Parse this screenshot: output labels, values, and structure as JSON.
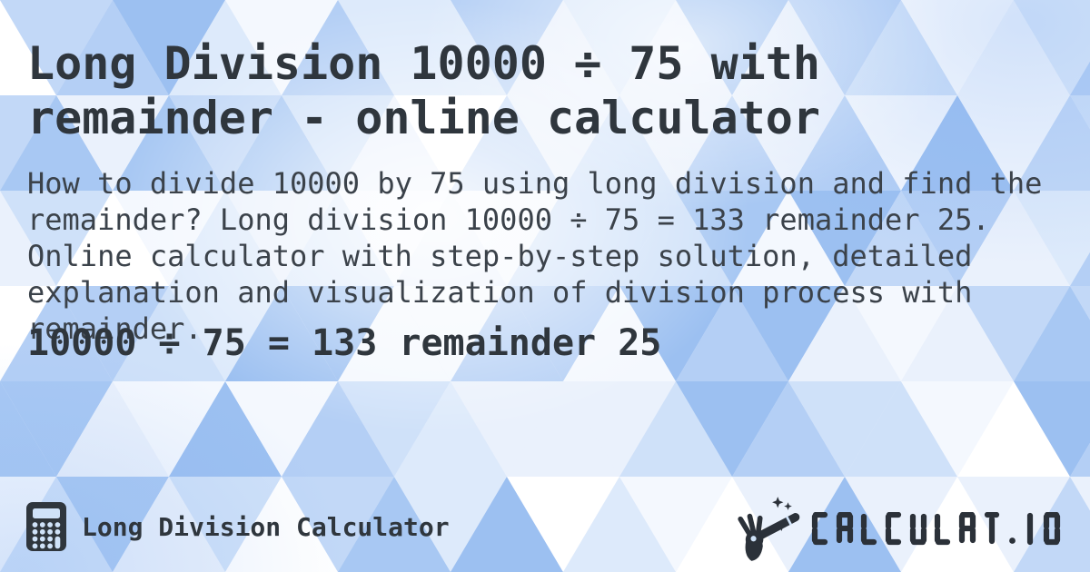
{
  "page": {
    "title": "Long Division 10000 ÷ 75 with remainder - online calculator",
    "description": "How to divide 10000 by 75 using long division and find the remainder? Long division 10000 ÷ 75 = 133 remainder 25. Online calculator with step-by-step solution, detailed explanation and visualization of division process with remainder.",
    "answer": "10000 ÷ 75 = 133 remainder 25"
  },
  "footer": {
    "app_name": "Long Division Calculator",
    "app_icon": "calculator-icon",
    "brand_text": "CALCULAT.IO",
    "brand_icon": "magic-wand-hand-icon"
  },
  "colors": {
    "text_dark": "#2f363d",
    "text_body": "#3b424a",
    "logo_ink": "#2b3139",
    "icon_cutout": "#cfe2f8",
    "pattern_palette": [
      "#ffffff",
      "#f4f8fe",
      "#eaf1fc",
      "#ddeafb",
      "#cfe1f9",
      "#c2d8f7",
      "#b4cff5",
      "#a8c8f3",
      "#9cc0f1"
    ]
  }
}
